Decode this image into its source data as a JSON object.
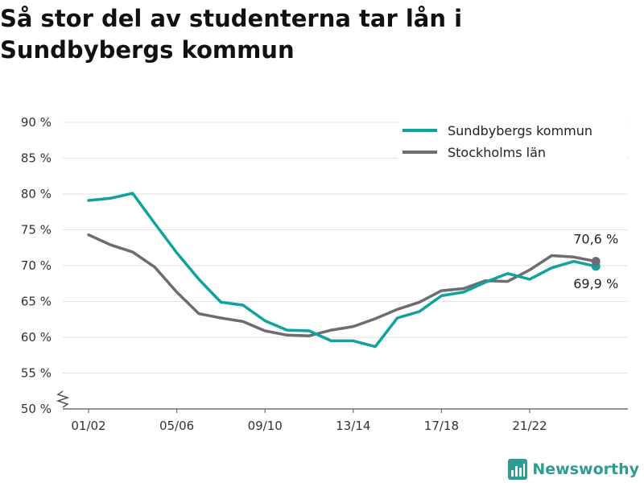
{
  "title": "Så stor del av studenterna tar lån i Sundbybergs kommun",
  "brand": {
    "name": "Newsworthy"
  },
  "colors": {
    "sundbyberg": "#0fa39b",
    "stockholm": "#6c6c72",
    "grid": "#e2e2e2",
    "brand": "#2f9c92"
  },
  "chart_data": {
    "type": "line",
    "title": "Så stor del av studenterna tar lån i Sundbybergs kommun",
    "xlabel": "",
    "ylabel": "",
    "ylim": [
      50,
      90
    ],
    "y_ticks": [
      50,
      55,
      60,
      65,
      70,
      75,
      80,
      85,
      90
    ],
    "y_tick_labels": [
      "50 %",
      "55 %",
      "60 %",
      "65 %",
      "70 %",
      "75 %",
      "80 %",
      "85 %",
      "90 %"
    ],
    "y_axis_break": true,
    "x_tick_labels": [
      "01/02",
      "05/06",
      "09/10",
      "13/14",
      "17/18",
      "21/22"
    ],
    "x_tick_indices": [
      0,
      4,
      8,
      12,
      16,
      20
    ],
    "grid": "horizontal",
    "legend_position": "top-right",
    "series": [
      {
        "name": "Sundbybergs kommun",
        "color": "#0fa39b",
        "values": [
          79.1,
          79.4,
          80.1,
          75.9,
          71.8,
          68.1,
          64.9,
          64.5,
          62.3,
          61.0,
          60.9,
          59.5,
          59.5,
          58.7,
          62.7,
          63.6,
          65.8,
          66.3,
          67.7,
          68.9,
          68.1,
          69.7,
          70.6,
          69.9
        ],
        "end_label": "69,9 %"
      },
      {
        "name": "Stockholms län",
        "color": "#6c6c72",
        "values": [
          74.3,
          72.9,
          71.9,
          69.8,
          66.3,
          63.3,
          62.7,
          62.2,
          60.9,
          60.3,
          60.2,
          61.0,
          61.5,
          62.6,
          63.9,
          64.9,
          66.5,
          66.8,
          67.9,
          67.8,
          69.4,
          71.4,
          71.2,
          70.6
        ],
        "end_label": "70,6 %"
      }
    ]
  }
}
